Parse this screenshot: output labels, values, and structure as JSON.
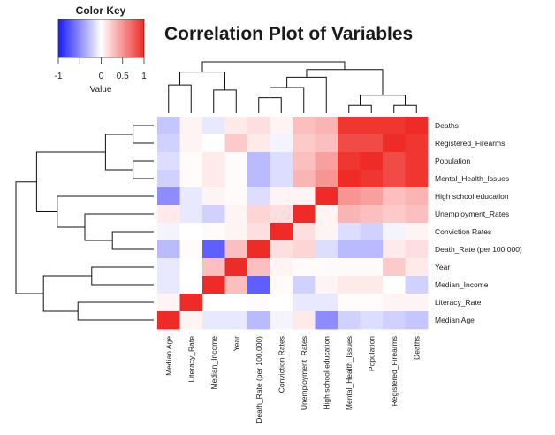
{
  "chart_data": {
    "type": "heatmap",
    "title": "Correlation Plot of Variables",
    "row_labels": [
      "Deaths",
      "Registered_Firearms",
      "Population",
      "Mental_Health_Issues",
      "High school education",
      "Unemployment_Rates",
      "Conviction Rates",
      "Death_Rate (per 100,000)",
      "Year",
      "Median_Income",
      "Literacy_Rate",
      "Median Age"
    ],
    "col_labels": [
      "Median Age",
      "Literacy_Rate",
      "Median_Income",
      "Year",
      "Death_Rate (per 100,000)",
      "Conviction Rates",
      "Unemployment_Rates",
      "High school education",
      "Mental_Health_Issues",
      "Population",
      "Registered_Firearms",
      "Deaths"
    ],
    "values": [
      [
        -0.25,
        0.05,
        -0.1,
        0.1,
        0.15,
        0.05,
        0.3,
        0.35,
        0.95,
        0.95,
        0.95,
        1.0
      ],
      [
        -0.2,
        0.05,
        0.0,
        0.25,
        0.1,
        -0.05,
        0.25,
        0.3,
        0.85,
        0.85,
        1.0,
        0.95
      ],
      [
        -0.15,
        0.02,
        0.1,
        0.02,
        -0.3,
        -0.15,
        0.3,
        0.45,
        0.95,
        1.0,
        0.85,
        0.95
      ],
      [
        -0.2,
        0.02,
        0.1,
        0.02,
        -0.3,
        -0.15,
        0.35,
        0.5,
        1.0,
        0.95,
        0.85,
        0.95
      ],
      [
        -0.5,
        -0.1,
        0.05,
        0.02,
        -0.15,
        0.05,
        0.05,
        1.0,
        0.5,
        0.45,
        0.3,
        0.35
      ],
      [
        0.1,
        -0.1,
        -0.2,
        0.05,
        0.2,
        0.15,
        1.0,
        0.05,
        0.35,
        0.3,
        0.25,
        0.3
      ],
      [
        -0.05,
        0.0,
        0.02,
        0.05,
        0.15,
        1.0,
        0.15,
        0.05,
        -0.15,
        -0.2,
        -0.05,
        0.05
      ],
      [
        -0.3,
        0.02,
        -0.7,
        0.3,
        1.0,
        0.15,
        0.2,
        -0.15,
        -0.3,
        -0.3,
        0.1,
        0.15
      ],
      [
        -0.1,
        0.0,
        0.3,
        1.0,
        0.3,
        0.05,
        0.02,
        0.02,
        0.02,
        0.02,
        0.25,
        0.1
      ],
      [
        -0.1,
        0.0,
        1.0,
        0.3,
        -0.7,
        0.02,
        -0.2,
        0.05,
        0.1,
        0.1,
        0.0,
        -0.2
      ],
      [
        0.05,
        1.0,
        0.0,
        0.0,
        0.02,
        0.0,
        -0.1,
        -0.1,
        0.02,
        0.02,
        0.05,
        0.05
      ],
      [
        1.0,
        0.05,
        -0.1,
        -0.1,
        -0.3,
        -0.05,
        0.1,
        -0.5,
        -0.2,
        -0.15,
        -0.2,
        -0.25
      ]
    ],
    "row_dendrogram": "((((Deaths,Registered_Firearms),(Population,Mental_Health_Issues)),(High school education,(Unemployment_Rates,(Conviction Rates,Death_Rate (per 100,000))))),((Year,Median_Income),(Literacy_Rate,Median Age)))",
    "col_dendrogram": "mirror of rows",
    "color_key": {
      "title": "Color Key",
      "label": "Value",
      "ticks": [
        "-1",
        "0",
        "0.5",
        "1"
      ],
      "range": [
        -1,
        1
      ],
      "colors": {
        "low": "#1a1aff",
        "mid": "#ffffff",
        "high": "#ee2b26"
      }
    }
  }
}
